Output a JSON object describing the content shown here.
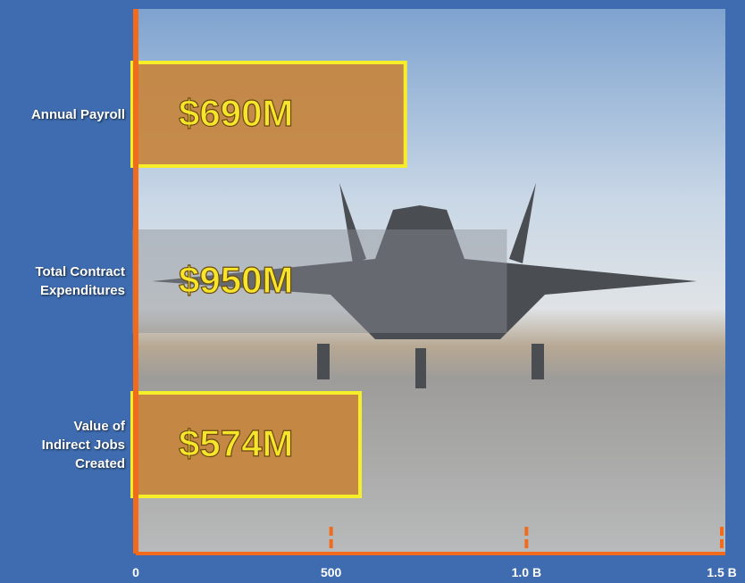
{
  "chart_data": {
    "type": "barh",
    "categories": [
      "Annual Payroll",
      "Total Contract Expenditures",
      "Value of Indirect Jobs Created"
    ],
    "values": [
      690,
      950,
      574
    ],
    "value_labels": [
      "$690M",
      "$950M",
      "$574M"
    ],
    "colors": [
      "#c8843a",
      "#8a8e94",
      "#c8843a"
    ],
    "xlim": [
      0,
      1500
    ],
    "xticks": [
      0,
      500,
      {
        "value": 1000,
        "label": "1.0 B"
      },
      {
        "value": 1500,
        "label": "1.5 B"
      }
    ],
    "axis_color": "#f26a1b"
  }
}
